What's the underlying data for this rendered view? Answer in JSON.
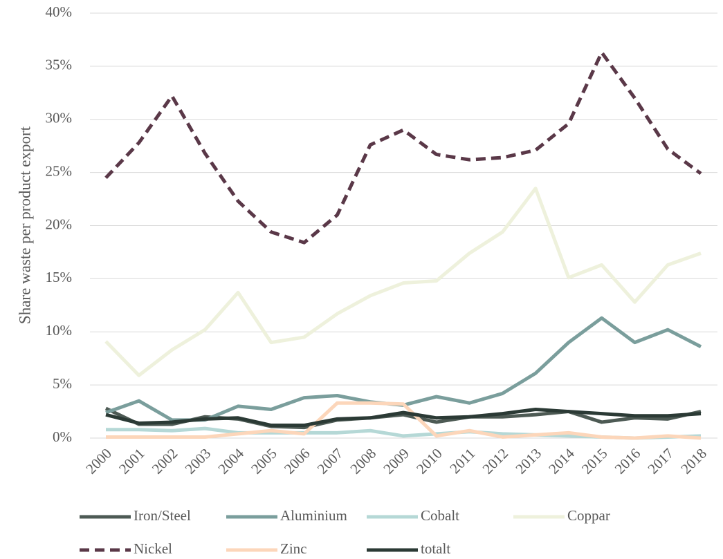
{
  "chart_data": {
    "type": "line",
    "y_label": "Share waste per product export",
    "categories": [
      "2000",
      "2001",
      "2002",
      "2003",
      "2004",
      "2005",
      "2006",
      "2007",
      "2008",
      "2009",
      "2010",
      "2011",
      "2012",
      "2013",
      "2014",
      "2015",
      "2016",
      "2017",
      "2018"
    ],
    "series": [
      {
        "name": "Iron/Steel",
        "color": "#4d5a54",
        "values": [
          2.8,
          1.3,
          1.3,
          2.0,
          1.8,
          1.1,
          1.0,
          1.7,
          1.9,
          2.2,
          1.5,
          2.0,
          2.0,
          2.2,
          2.5,
          1.5,
          1.9,
          1.8,
          2.5
        ]
      },
      {
        "name": "Aluminium",
        "color": "#7a9e9c",
        "values": [
          2.4,
          3.5,
          1.7,
          1.7,
          3.0,
          2.7,
          3.8,
          4.0,
          3.4,
          3.1,
          3.9,
          3.3,
          4.2,
          6.1,
          9.0,
          11.3,
          9.0,
          10.2,
          8.6
        ]
      },
      {
        "name": "Cobalt",
        "color": "#b5d8d6",
        "values": [
          0.8,
          0.8,
          0.7,
          0.9,
          0.5,
          0.5,
          0.5,
          0.5,
          0.7,
          0.2,
          0.4,
          0.6,
          0.4,
          0.3,
          0.2,
          0.1,
          0.0,
          0.1,
          0.2
        ]
      },
      {
        "name": "Coppar",
        "color": "#eef1dc",
        "values": [
          9.1,
          5.9,
          8.3,
          10.2,
          13.7,
          9.0,
          9.5,
          11.7,
          13.4,
          14.6,
          14.8,
          17.4,
          19.4,
          23.5,
          15.1,
          16.3,
          12.8,
          16.3,
          17.4
        ]
      },
      {
        "name": "Nickel",
        "color": "#5a3848",
        "dashed": true,
        "values": [
          24.5,
          27.8,
          32.2,
          26.8,
          22.3,
          19.4,
          18.4,
          21.0,
          27.6,
          29.0,
          26.7,
          26.2,
          26.4,
          27.1,
          29.6,
          36.3,
          32.0,
          27.2,
          24.9
        ]
      },
      {
        "name": "Zinc",
        "color": "#fcd6ba",
        "values": [
          0.1,
          0.1,
          0.1,
          0.1,
          0.4,
          0.7,
          0.4,
          3.3,
          3.3,
          3.2,
          0.2,
          0.7,
          0.1,
          0.3,
          0.5,
          0.1,
          0.0,
          0.2,
          0.0
        ]
      },
      {
        "name": "totalt",
        "color": "#2b3a35",
        "values": [
          2.2,
          1.4,
          1.5,
          1.8,
          1.9,
          1.2,
          1.2,
          1.8,
          1.9,
          2.4,
          1.9,
          2.0,
          2.3,
          2.7,
          2.5,
          2.3,
          2.1,
          2.1,
          2.3
        ]
      }
    ],
    "ylim": [
      0,
      40
    ],
    "yticks": [
      {
        "value": 0,
        "label": "0%"
      },
      {
        "value": 5,
        "label": "5%"
      },
      {
        "value": 10,
        "label": "10%"
      },
      {
        "value": 15,
        "label": "15%"
      },
      {
        "value": 20,
        "label": "20%"
      },
      {
        "value": 25,
        "label": "25%"
      },
      {
        "value": 30,
        "label": "30%"
      },
      {
        "value": 35,
        "label": "35%"
      },
      {
        "value": 40,
        "label": "40%"
      }
    ],
    "grid": true
  }
}
